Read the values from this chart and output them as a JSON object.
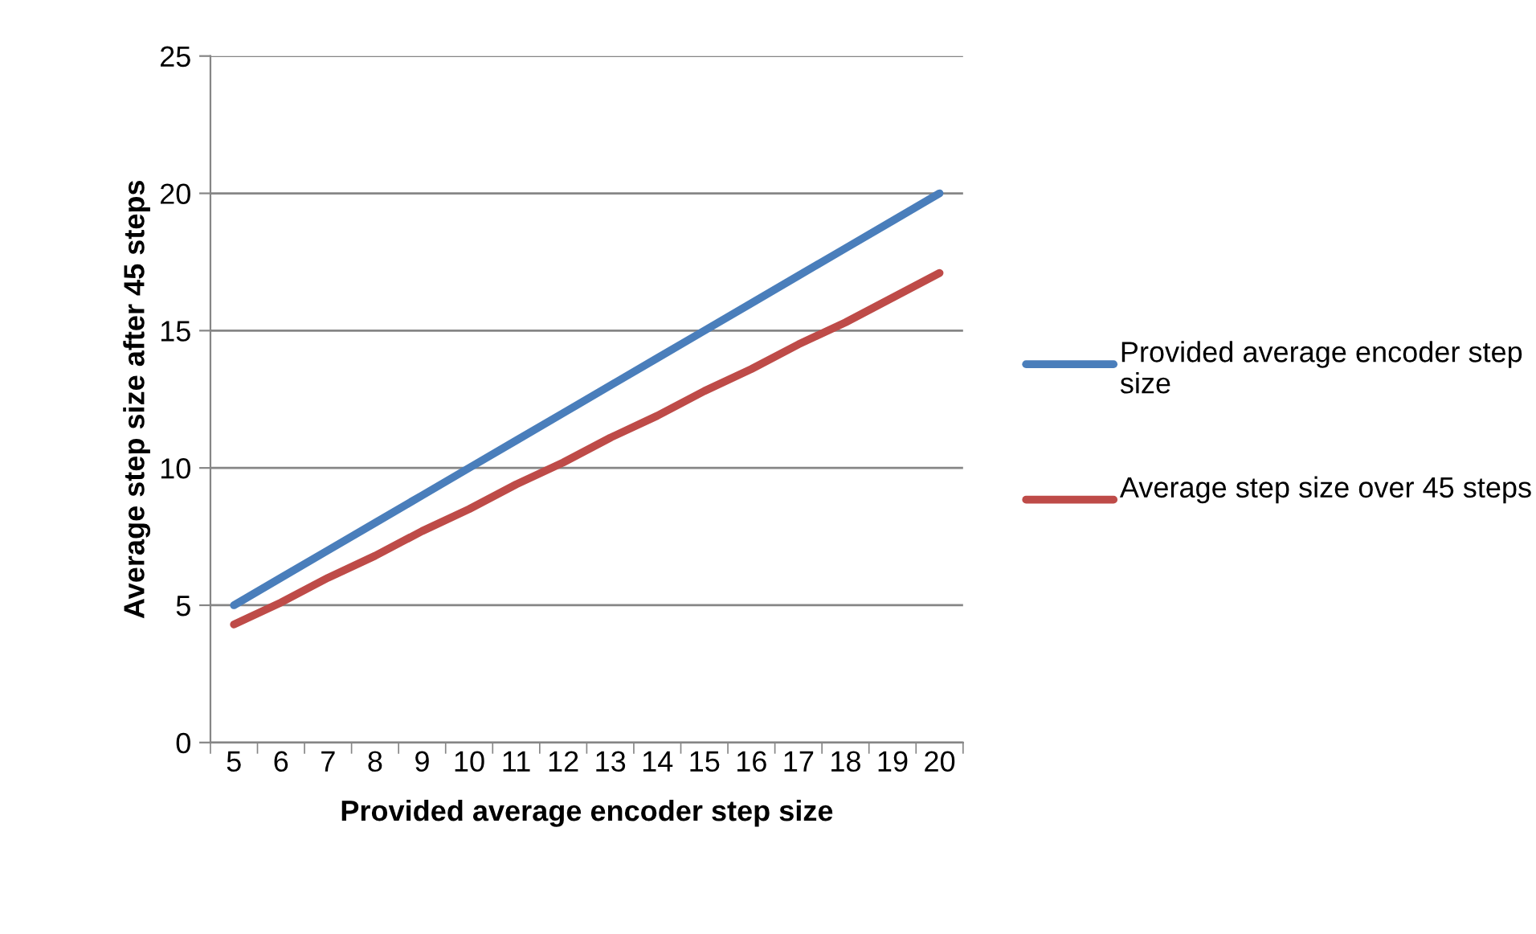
{
  "chart_data": {
    "type": "line",
    "xlabel": "Provided average encoder step size",
    "ylabel": "Average step size after 45 steps",
    "categories": [
      "5",
      "6",
      "7",
      "8",
      "9",
      "10",
      "11",
      "12",
      "13",
      "14",
      "15",
      "16",
      "17",
      "18",
      "19",
      "20"
    ],
    "series": [
      {
        "name": "Provided average encoder step size",
        "color": "#4a7ebb",
        "values": [
          5,
          6,
          7,
          8,
          9,
          10,
          11,
          12,
          13,
          14,
          15,
          16,
          17,
          18,
          19,
          20
        ]
      },
      {
        "name": "Average step size over 45 steps",
        "color": "#be4b48",
        "values": [
          4.3,
          5.1,
          6.0,
          6.8,
          7.7,
          8.5,
          9.4,
          10.2,
          11.1,
          11.9,
          12.8,
          13.6,
          14.5,
          15.3,
          16.2,
          17.1
        ]
      }
    ],
    "ylim": [
      0,
      25
    ],
    "yticks": [
      0,
      5,
      10,
      15,
      20,
      25
    ],
    "grid": "y",
    "legend": "right",
    "marker": "none",
    "line_style": "solid"
  }
}
